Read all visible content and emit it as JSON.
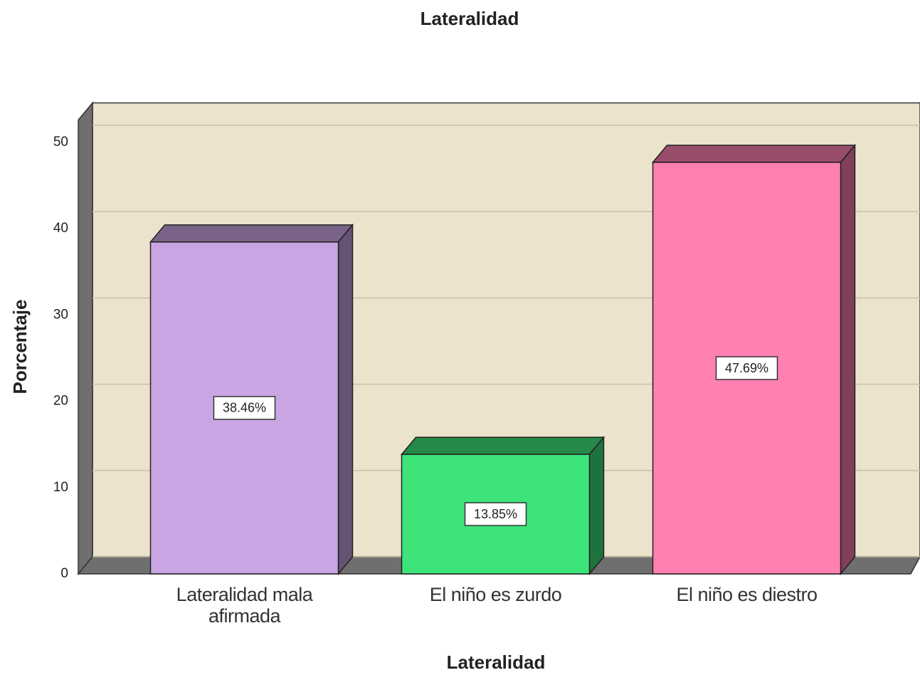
{
  "chart_data": {
    "type": "bar3d",
    "title": "Lateralidad",
    "x_label": "Lateralidad",
    "y_label": "Porcentaje",
    "categories": [
      "Lateralidad mala afirmada",
      "El niño es zurdo",
      "El niño es diestro"
    ],
    "values": [
      38.46,
      13.85,
      47.69
    ],
    "value_labels": [
      "38.46%",
      "13.85%",
      "47.69%"
    ],
    "colors": [
      "#c9a5e3",
      "#3ce47a",
      "#ff80b1"
    ],
    "ylim": [
      0,
      52.6
    ],
    "yticks": [
      0,
      10,
      20,
      30,
      40,
      50
    ],
    "grid": true
  }
}
